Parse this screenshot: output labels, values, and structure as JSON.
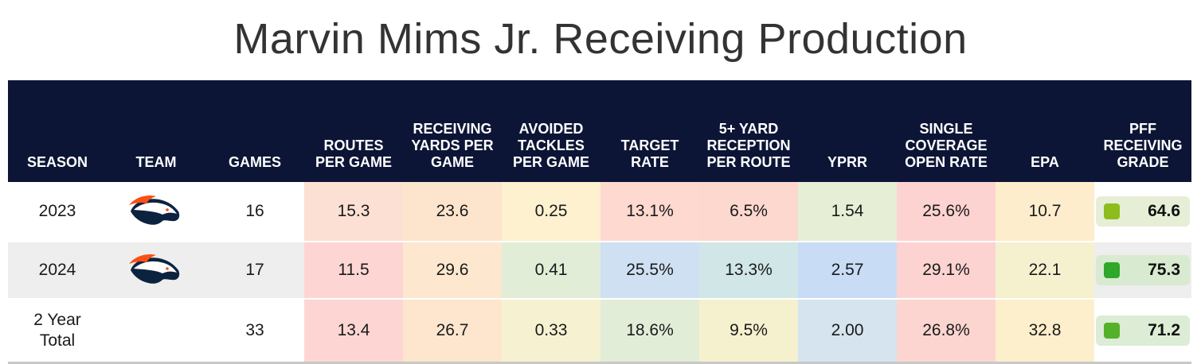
{
  "title": "Marvin Mims Jr. Receiving Production",
  "headers": {
    "season": "SEASON",
    "team": "TEAM",
    "games": "GAMES",
    "routes": "ROUTES PER GAME",
    "yards": "RECEIVING YARDS PER GAME",
    "avoided": "AVOIDED TACKLES PER GAME",
    "target": "TARGET RATE",
    "five": "5+ YARD RECEPTION PER ROUTE",
    "yprr": "YPRR",
    "single": "SINGLE COVERAGE OPEN RATE",
    "epa": "EPA",
    "grade": "PFF RECEIVING GRADE"
  },
  "team_logo": "denver-broncos-logo",
  "rows": [
    {
      "season": "2023",
      "games": "16",
      "routes": "15.3",
      "yards": "23.6",
      "avoided": "0.25",
      "target": "13.1%",
      "five": "6.5%",
      "yprr": "1.54",
      "single": "25.6%",
      "epa": "10.7",
      "grade": "64.6"
    },
    {
      "season": "2024",
      "games": "17",
      "routes": "11.5",
      "yards": "29.6",
      "avoided": "0.41",
      "target": "25.5%",
      "five": "13.3%",
      "yprr": "2.57",
      "single": "29.1%",
      "epa": "22.1",
      "grade": "75.3"
    },
    {
      "season": "2 Year Total",
      "games": "33",
      "routes": "13.4",
      "yards": "26.7",
      "avoided": "0.33",
      "target": "18.6%",
      "five": "9.5%",
      "yprr": "2.00",
      "single": "26.8%",
      "epa": "32.8",
      "grade": "71.2"
    }
  ],
  "cell_colors": [
    {
      "routes": "#fde0d4",
      "yards": "#fde5cd",
      "avoided": "#fdf1cf",
      "target": "#fdd9d0",
      "five": "#fdd8cf",
      "yprr": "#e6efd6",
      "single": "#fcd3d1",
      "epa": "#fdedcc",
      "grade_bg": "#e6efd6",
      "grade_dot": "#8dbd1c"
    },
    {
      "routes": "#fdd6d3",
      "yards": "#fde7cf",
      "avoided": "#e2edd8",
      "target": "#cfe0f3",
      "five": "#d1e6e6",
      "yprr": "#c8dcf6",
      "single": "#fcd3d1",
      "epa": "#f5f1cf",
      "grade_bg": "#d8ead0",
      "grade_dot": "#2ea72a"
    },
    {
      "routes": "#fdd6d3",
      "yards": "#fde6cd",
      "avoided": "#f6f2d1",
      "target": "#e2edd8",
      "five": "#f5f1cf",
      "yprr": "#d5e4ee",
      "single": "#fcd5d0",
      "epa": "#fdeecc",
      "grade_bg": "#dcecd5",
      "grade_dot": "#54b12a"
    }
  ]
}
